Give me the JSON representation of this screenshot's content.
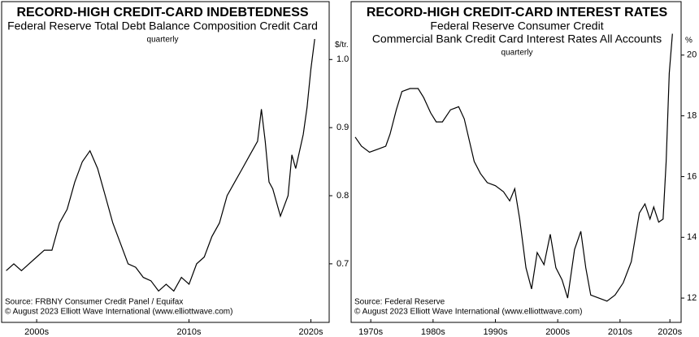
{
  "chart_data": [
    {
      "type": "line",
      "title": "RECORD-HIGH CREDIT-CARD INDEBTEDNESS",
      "subtitle": [
        "Federal Reserve Total Debt Balance Composition Credit Card"
      ],
      "frequency": "quarterly",
      "ylabel": "$/tr.",
      "notes": [
        "Source: FRBNY Consumer Credit Panel / Equifax",
        "© August 2023 Elliott Wave International (www.elliottwave.com)"
      ],
      "xlim": [
        2002.7,
        2024.2
      ],
      "xticks": [
        {
          "value": 2005,
          "label": "2000s"
        },
        {
          "value": 2015,
          "label": "2010s"
        },
        {
          "value": 2023,
          "label": "2020s"
        }
      ],
      "ylim": [
        0.614,
        1.085
      ],
      "yticks": [
        {
          "value": 1,
          "label": "1.0"
        },
        0.9,
        0.8,
        0.7
      ],
      "series": [
        {
          "color": "#000000",
          "x": [
            2003,
            2003.5,
            2004,
            2004.5,
            2005,
            2005.5,
            2006,
            2006.5,
            2007,
            2007.5,
            2008,
            2008.5,
            2009,
            2009.5,
            2010,
            2010.5,
            2011,
            2011.5,
            2012,
            2012.5,
            2013,
            2013.5,
            2014,
            2014.5,
            2015,
            2015.5,
            2016,
            2016.5,
            2017,
            2017.5,
            2018,
            2018.5,
            2019,
            2019.5,
            2019.75,
            2020,
            2020.25,
            2020.5,
            2021,
            2021.5,
            2021.75,
            2022,
            2022.5,
            2022.75,
            2023,
            2023.25
          ],
          "values": [
            0.69,
            0.7,
            0.69,
            0.7,
            0.71,
            0.72,
            0.72,
            0.76,
            0.78,
            0.82,
            0.85,
            0.866,
            0.84,
            0.8,
            0.76,
            0.73,
            0.7,
            0.695,
            0.68,
            0.675,
            0.66,
            0.67,
            0.66,
            0.68,
            0.67,
            0.7,
            0.71,
            0.74,
            0.76,
            0.8,
            0.82,
            0.84,
            0.86,
            0.88,
            0.927,
            0.88,
            0.82,
            0.81,
            0.77,
            0.8,
            0.86,
            0.84,
            0.89,
            0.93,
            0.986,
            1.03
          ]
        }
      ]
    },
    {
      "type": "line",
      "title": "RECORD-HIGH CREDIT-CARD INTEREST RATES",
      "subtitle": [
        "Federal Reserve Consumer Credit",
        "Commercial Bank Credit Card Interest Rates All Accounts"
      ],
      "frequency": "quarterly",
      "ylabel": "%",
      "notes": [
        "Source: Federal Reserve",
        "© August 2023 Elliott Wave International (www.elliottwave.com)"
      ],
      "xlim": [
        1971.85,
        2024.8
      ],
      "xticks": [
        {
          "value": 1975,
          "label": "1970s"
        },
        {
          "value": 1985,
          "label": "1980s"
        },
        {
          "value": 1995,
          "label": "1990s"
        },
        {
          "value": 2005,
          "label": "2000s"
        },
        {
          "value": 2015,
          "label": "2010s"
        },
        {
          "value": 2023,
          "label": "2020s"
        }
      ],
      "ylim": [
        11.2,
        21.76
      ],
      "yticks": [
        20,
        18,
        16,
        14,
        12
      ],
      "series": [
        {
          "color": "#000000",
          "x": [
            1972.5,
            1973.5,
            1974.8,
            1976.1,
            1977.4,
            1978.1,
            1979.1,
            1980,
            1981.3,
            1982.6,
            1983.5,
            1984.6,
            1985.5,
            1986.5,
            1987.8,
            1989.1,
            1990,
            1990.8,
            1991.6,
            1992.6,
            1993.7,
            1995,
            1996.3,
            1997.3,
            1998.1,
            1998.9,
            1999.9,
            2000.8,
            2001.7,
            2002.8,
            2003.8,
            2004.7,
            2005.7,
            2006.6,
            2007.7,
            2008.7,
            2009.5,
            2010.3,
            2011.6,
            2012.9,
            2014.2,
            2015.5,
            2016.8,
            2018.1,
            2019,
            2019.8,
            2020.4,
            2021.2,
            2021.9,
            2022.4,
            2022.9,
            2023.4
          ],
          "values": [
            17.3,
            17,
            16.8,
            16.9,
            17,
            17.4,
            18.2,
            18.8,
            18.9,
            18.9,
            18.6,
            18.1,
            17.8,
            17.8,
            18.2,
            18.3,
            17.9,
            17.2,
            16.5,
            16.1,
            15.8,
            15.7,
            15.5,
            15.2,
            15.6,
            14.6,
            13,
            12.3,
            13.5,
            13.1,
            14.1,
            13,
            12.6,
            12,
            13.6,
            14.2,
            13,
            12.1,
            12,
            11.9,
            12.1,
            12.5,
            13.2,
            14.8,
            15.1,
            14.6,
            15,
            14.5,
            14.6,
            16.5,
            19.4,
            20.7
          ]
        }
      ]
    }
  ]
}
